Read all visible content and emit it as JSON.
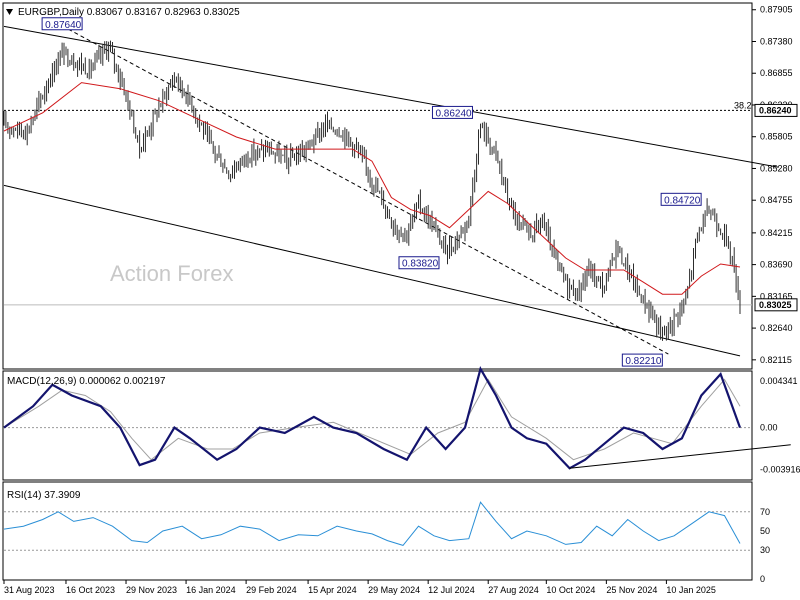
{
  "chart_data": [
    {
      "type": "candlestick",
      "title": "EURGBP,Daily  0.83067 0.83167 0.82963 0.83025",
      "watermark": "Action Forex",
      "y_ticks": [
        "0.87905",
        "0.87380",
        "0.86855",
        "0.86330",
        "0.85805",
        "0.85280",
        "0.84755",
        "0.84215",
        "0.83690",
        "0.83165",
        "0.82640",
        "0.82115"
      ],
      "ylim": [
        0.8198,
        0.88
      ],
      "x_ticks": [
        "31 Aug 2023",
        "16 Oct 2023",
        "29 Nov 2023",
        "16 Jan 2024",
        "29 Feb 2024",
        "15 Apr 2024",
        "29 May 2024",
        "12 Jul 2024",
        "27 Aug 2024",
        "10 Oct 2024",
        "25 Nov 2024",
        "10 Jan 2025"
      ],
      "last_price": "0.83025",
      "last_price_value": 0.83025,
      "fib_level": {
        "label": "38.2",
        "value": 0.8624,
        "value_label": "0.86240"
      },
      "annotations": [
        {
          "label": "0.87640",
          "value": 0.8764,
          "date_index": 30
        },
        {
          "label": "0.86240",
          "value": 0.8624,
          "date_index": 246
        },
        {
          "label": "0.83820",
          "value": 0.8382,
          "date_index": 206
        },
        {
          "label": "0.84720",
          "value": 0.8472,
          "date_index": 362
        },
        {
          "label": "0.82210",
          "value": 0.8221,
          "date_index": 343
        }
      ],
      "close_path": [
        [
          0,
          0.86
        ],
        [
          12,
          0.859
        ],
        [
          24,
          0.868
        ],
        [
          30,
          0.872
        ],
        [
          44,
          0.869
        ],
        [
          54,
          0.873
        ],
        [
          62,
          0.866
        ],
        [
          70,
          0.856
        ],
        [
          80,
          0.863
        ],
        [
          88,
          0.868
        ],
        [
          96,
          0.864
        ],
        [
          106,
          0.857
        ],
        [
          116,
          0.852
        ],
        [
          126,
          0.855
        ],
        [
          136,
          0.856
        ],
        [
          146,
          0.854
        ],
        [
          156,
          0.856
        ],
        [
          166,
          0.86
        ],
        [
          174,
          0.859
        ],
        [
          182,
          0.856
        ],
        [
          190,
          0.851
        ],
        [
          196,
          0.847
        ],
        [
          202,
          0.843
        ],
        [
          208,
          0.842
        ],
        [
          214,
          0.847
        ],
        [
          222,
          0.843
        ],
        [
          228,
          0.839
        ],
        [
          234,
          0.841
        ],
        [
          240,
          0.845
        ],
        [
          246,
          0.86
        ],
        [
          254,
          0.855
        ],
        [
          260,
          0.848
        ],
        [
          266,
          0.843
        ],
        [
          272,
          0.842
        ],
        [
          278,
          0.844
        ],
        [
          284,
          0.838
        ],
        [
          290,
          0.834
        ],
        [
          296,
          0.832
        ],
        [
          302,
          0.836
        ],
        [
          310,
          0.833
        ],
        [
          316,
          0.84
        ],
        [
          322,
          0.836
        ],
        [
          328,
          0.832
        ],
        [
          334,
          0.829
        ],
        [
          340,
          0.825
        ],
        [
          346,
          0.828
        ],
        [
          352,
          0.831
        ],
        [
          358,
          0.842
        ],
        [
          364,
          0.846
        ],
        [
          370,
          0.843
        ],
        [
          376,
          0.838
        ],
        [
          380,
          0.8305
        ]
      ],
      "ma_path": [
        [
          0,
          0.859
        ],
        [
          20,
          0.862
        ],
        [
          40,
          0.867
        ],
        [
          60,
          0.866
        ],
        [
          80,
          0.864
        ],
        [
          100,
          0.861
        ],
        [
          120,
          0.858
        ],
        [
          140,
          0.856
        ],
        [
          160,
          0.856
        ],
        [
          180,
          0.856
        ],
        [
          190,
          0.854
        ],
        [
          200,
          0.848
        ],
        [
          210,
          0.846
        ],
        [
          220,
          0.845
        ],
        [
          230,
          0.843
        ],
        [
          240,
          0.846
        ],
        [
          250,
          0.849
        ],
        [
          260,
          0.847
        ],
        [
          270,
          0.844
        ],
        [
          280,
          0.841
        ],
        [
          290,
          0.838
        ],
        [
          300,
          0.836
        ],
        [
          310,
          0.836
        ],
        [
          320,
          0.836
        ],
        [
          330,
          0.834
        ],
        [
          340,
          0.832
        ],
        [
          350,
          0.832
        ],
        [
          360,
          0.835
        ],
        [
          370,
          0.837
        ],
        [
          380,
          0.8365
        ]
      ],
      "channel_upper": [
        [
          0,
          0.8763
        ],
        [
          400,
          0.853
        ]
      ],
      "channel_lower": [
        [
          0,
          0.85
        ],
        [
          380,
          0.8218
        ]
      ],
      "dashed_line": [
        [
          30,
          0.8764
        ],
        [
          343,
          0.8221
        ]
      ]
    },
    {
      "type": "line",
      "title": "MACD(12,26,9) 0.000062 0.002197",
      "y_ticks": [
        "0.004341",
        "0.00",
        "-0.003916"
      ],
      "ylim": [
        -0.0048,
        0.0052
      ],
      "macd_path": [
        [
          0,
          0.0
        ],
        [
          15,
          0.002
        ],
        [
          25,
          0.004
        ],
        [
          35,
          0.003
        ],
        [
          50,
          0.002
        ],
        [
          60,
          0.0
        ],
        [
          70,
          -0.0035
        ],
        [
          78,
          -0.003
        ],
        [
          88,
          0.0
        ],
        [
          96,
          -0.001
        ],
        [
          110,
          -0.003
        ],
        [
          120,
          -0.002
        ],
        [
          132,
          0.0
        ],
        [
          145,
          -0.0005
        ],
        [
          160,
          0.001
        ],
        [
          170,
          0.0
        ],
        [
          182,
          -0.0005
        ],
        [
          196,
          -0.002
        ],
        [
          208,
          -0.003
        ],
        [
          218,
          0.0
        ],
        [
          228,
          -0.002
        ],
        [
          238,
          0.0
        ],
        [
          246,
          0.0055
        ],
        [
          254,
          0.003
        ],
        [
          262,
          0.0
        ],
        [
          270,
          -0.001
        ],
        [
          280,
          -0.0015
        ],
        [
          292,
          -0.0038
        ],
        [
          300,
          -0.003
        ],
        [
          310,
          -0.0015
        ],
        [
          320,
          0.0
        ],
        [
          330,
          -0.0005
        ],
        [
          340,
          -0.002
        ],
        [
          350,
          -0.001
        ],
        [
          360,
          0.003
        ],
        [
          370,
          0.005
        ],
        [
          380,
          0.0
        ]
      ],
      "signal_path": [
        [
          0,
          0.0
        ],
        [
          18,
          0.002
        ],
        [
          30,
          0.0035
        ],
        [
          42,
          0.003
        ],
        [
          55,
          0.0015
        ],
        [
          66,
          -0.001
        ],
        [
          76,
          -0.003
        ],
        [
          90,
          -0.001
        ],
        [
          105,
          -0.002
        ],
        [
          118,
          -0.002
        ],
        [
          132,
          -0.0005
        ],
        [
          150,
          0.0
        ],
        [
          170,
          0.0005
        ],
        [
          190,
          -0.001
        ],
        [
          210,
          -0.0025
        ],
        [
          224,
          -0.0005
        ],
        [
          238,
          0.0005
        ],
        [
          250,
          0.0045
        ],
        [
          262,
          0.001
        ],
        [
          280,
          -0.001
        ],
        [
          294,
          -0.003
        ],
        [
          310,
          -0.002
        ],
        [
          325,
          -0.0005
        ],
        [
          345,
          -0.0015
        ],
        [
          360,
          0.002
        ],
        [
          372,
          0.0045
        ],
        [
          380,
          0.002
        ]
      ],
      "support_line": [
        [
          292,
          -0.0038
        ],
        [
          400,
          -0.0016
        ]
      ]
    },
    {
      "type": "line",
      "title": "RSI(14) 37.3909",
      "y_ticks": [
        "70",
        "50",
        "30",
        "0"
      ],
      "ylim": [
        0,
        100
      ],
      "rsi_path": [
        [
          0,
          52
        ],
        [
          10,
          55
        ],
        [
          20,
          62
        ],
        [
          28,
          70
        ],
        [
          36,
          60
        ],
        [
          46,
          64
        ],
        [
          56,
          55
        ],
        [
          66,
          40
        ],
        [
          74,
          38
        ],
        [
          82,
          50
        ],
        [
          92,
          55
        ],
        [
          102,
          42
        ],
        [
          112,
          46
        ],
        [
          122,
          55
        ],
        [
          132,
          52
        ],
        [
          142,
          40
        ],
        [
          152,
          46
        ],
        [
          162,
          45
        ],
        [
          172,
          55
        ],
        [
          182,
          50
        ],
        [
          190,
          47
        ],
        [
          198,
          40
        ],
        [
          206,
          35
        ],
        [
          214,
          55
        ],
        [
          222,
          45
        ],
        [
          230,
          40
        ],
        [
          240,
          42
        ],
        [
          246,
          80
        ],
        [
          254,
          60
        ],
        [
          262,
          42
        ],
        [
          270,
          50
        ],
        [
          280,
          45
        ],
        [
          290,
          36
        ],
        [
          298,
          38
        ],
        [
          306,
          55
        ],
        [
          314,
          45
        ],
        [
          322,
          62
        ],
        [
          330,
          50
        ],
        [
          338,
          40
        ],
        [
          346,
          45
        ],
        [
          354,
          56
        ],
        [
          364,
          70
        ],
        [
          372,
          66
        ],
        [
          380,
          37
        ]
      ]
    }
  ]
}
